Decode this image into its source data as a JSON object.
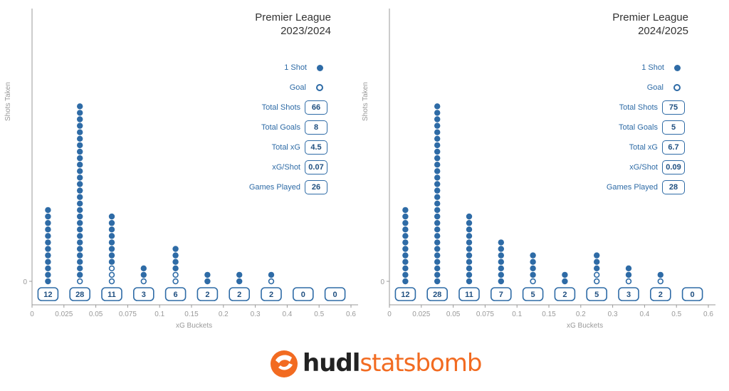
{
  "chart_data": [
    {
      "type": "scatter",
      "title": "Premier League",
      "subtitle": "2023/2024",
      "xlabel": "xG Buckets",
      "ylabel": "Shots Taken",
      "xlim": [
        0,
        0.6
      ],
      "xticks": [
        "0",
        "0.025",
        "0.05",
        "0.075",
        "0.1",
        "0.15",
        "0.2",
        "0.3",
        "0.4",
        "0.5",
        "0.6"
      ],
      "yticks": [
        "0"
      ],
      "buckets": [
        {
          "shots": 12,
          "goals": 0,
          "count_label": "12"
        },
        {
          "shots": 28,
          "goals": 1,
          "count_label": "28"
        },
        {
          "shots": 11,
          "goals": 3,
          "count_label": "11"
        },
        {
          "shots": 3,
          "goals": 1,
          "count_label": "3"
        },
        {
          "shots": 6,
          "goals": 2,
          "count_label": "6"
        },
        {
          "shots": 2,
          "goals": 0,
          "count_label": "2"
        },
        {
          "shots": 2,
          "goals": 0,
          "count_label": "2"
        },
        {
          "shots": 2,
          "goals": 1,
          "count_label": "2"
        },
        {
          "shots": 0,
          "goals": 0,
          "count_label": "0"
        },
        {
          "shots": 0,
          "goals": 0,
          "count_label": "0"
        }
      ],
      "legend": {
        "shot_label": "1 Shot",
        "goal_label": "Goal",
        "stats": [
          {
            "label": "Total Shots",
            "value": "66"
          },
          {
            "label": "Total Goals",
            "value": "8"
          },
          {
            "label": "Total xG",
            "value": "4.5"
          },
          {
            "label": "xG/Shot",
            "value": "0.07"
          },
          {
            "label": "Games Played",
            "value": "26"
          }
        ]
      }
    },
    {
      "type": "scatter",
      "title": "Premier League",
      "subtitle": "2024/2025",
      "xlabel": "xG Buckets",
      "ylabel": "Shots Taken",
      "xlim": [
        0,
        0.6
      ],
      "xticks": [
        "0",
        "0.025",
        "0.05",
        "0.075",
        "0.1",
        "0.15",
        "0.2",
        "0.3",
        "0.4",
        "0.5",
        "0.6"
      ],
      "yticks": [
        "0"
      ],
      "buckets": [
        {
          "shots": 12,
          "goals": 0,
          "count_label": "12"
        },
        {
          "shots": 28,
          "goals": 0,
          "count_label": "28"
        },
        {
          "shots": 11,
          "goals": 0,
          "count_label": "11"
        },
        {
          "shots": 7,
          "goals": 0,
          "count_label": "7"
        },
        {
          "shots": 5,
          "goals": 1,
          "count_label": "5"
        },
        {
          "shots": 2,
          "goals": 0,
          "count_label": "2"
        },
        {
          "shots": 5,
          "goals": 2,
          "count_label": "5"
        },
        {
          "shots": 3,
          "goals": 1,
          "count_label": "3"
        },
        {
          "shots": 2,
          "goals": 1,
          "count_label": "2"
        },
        {
          "shots": 0,
          "goals": 0,
          "count_label": "0"
        }
      ],
      "legend": {
        "shot_label": "1 Shot",
        "goal_label": "Goal",
        "stats": [
          {
            "label": "Total Shots",
            "value": "75"
          },
          {
            "label": "Total Goals",
            "value": "5"
          },
          {
            "label": "Total xG",
            "value": "6.7"
          },
          {
            "label": "xG/Shot",
            "value": "0.09"
          },
          {
            "label": "Games Played",
            "value": "28"
          }
        ]
      }
    }
  ],
  "colors": {
    "marker": "#2e6ba6",
    "axis": "#999999",
    "brand_orange": "#f26b21",
    "brand_dark": "#222222"
  },
  "logo": {
    "part1": "hudl",
    "part2": "statsbomb",
    "icon": "hudl-statsbomb-logo-icon"
  }
}
